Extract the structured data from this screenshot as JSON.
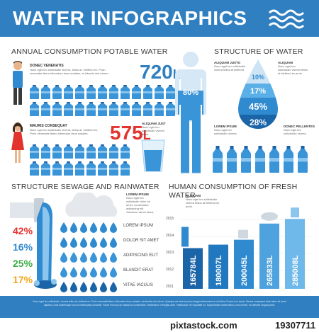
{
  "header": {
    "title": "WATER INFOGRAPHICS"
  },
  "consumption": {
    "title": "ANNUAL CONSUMPTION POTABLE WATER",
    "man": {
      "name": "DONEC VENENATIS",
      "value": "720",
      "unit": "L"
    },
    "woman": {
      "name": "MAURIS CONSEQUAT",
      "value": "575",
      "unit": "L"
    }
  },
  "body_figure": {
    "percent": "80%"
  },
  "glass": {
    "label": "ALIQUAM JUST"
  },
  "structure_water": {
    "title": "STRUCTURE OF WATER",
    "labels": [
      "ALIQUAM JUSTO",
      "ALIQUAM",
      "LOREM IPSUM",
      "DONEC PELLENTES"
    ],
    "drops": [
      "10%",
      "17%",
      "45%",
      "28%"
    ],
    "drop_colors": [
      "#cde4f5",
      "#5ab0e6",
      "#2f8ad0",
      "#1a64a8"
    ]
  },
  "sewage": {
    "title": "STRUCTURE SEWAGE AND RAINWATER",
    "lorem_label": "LOREM IPSUM",
    "percents": [
      {
        "value": "42%",
        "color": "#e2332c"
      },
      {
        "value": "16%",
        "color": "#2f8ad0"
      },
      {
        "value": "25%",
        "color": "#3fae49"
      },
      {
        "value": "17%",
        "color": "#f2a51c"
      }
    ],
    "drop_labels": [
      "LOREM IPSUM",
      "DOLOR SIT AMET",
      "ADIPISCING ELIT",
      "BLANDIT ERAT",
      "VITAE IACULIS"
    ]
  },
  "chart_data": {
    "type": "bar",
    "title": "HUMAN CONSUMPTION OF FRESH WATER",
    "categories": [
      "2011",
      "2012",
      "2013",
      "2014",
      "2015"
    ],
    "values": [
      165784,
      180007,
      200045,
      265833,
      285008
    ],
    "value_labels": [
      "165784L",
      "180007L",
      "200045L",
      "265833L",
      "285008L"
    ],
    "y_ticks": [
      "2015",
      "2014",
      "2013",
      "2012",
      "2011"
    ],
    "ylim": [
      0,
      300000
    ],
    "bar_colors": [
      "#1a64a8",
      "#2278be",
      "#2f8ad0",
      "#4ea2de",
      "#6fb9ea"
    ],
    "label": "ALIQUAM"
  },
  "footer": {
    "text": "Nunc eget leo sollicitudin, viverra tellus at, eleifend ex. Proin venenatis libero bibendum risus sodales, at lobortis nisl rutrum. Quisque vel ante in purus feugiat elementum a vel tellus. Fusce a ex turpis. Mauris consequat vitae tellus sit amet dapibus. Duis scelerisque urna id malesuada convallis. Fusce rhoncus ac massa ac consectetur. Vestibulum in fringilla ante. Vestibulum vel vulputate ex. Suspendisse mollis tellus a nisl ornare, eu ultricies magna porta."
  },
  "stock": {
    "brand": "pixtastock.com",
    "id": "19307711"
  },
  "colors": {
    "accent": "#2f7fc1",
    "bottle": "#3a94d8",
    "red": "#e2332c"
  }
}
